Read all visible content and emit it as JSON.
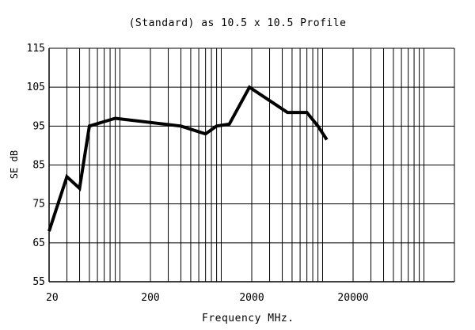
{
  "chart_data": {
    "type": "line",
    "title": "(Standard) as 10.5 x 10.5 Profile",
    "xlabel": "Frequency MHz.",
    "ylabel": "SE dB",
    "x_scale": "log",
    "xlim": [
      20,
      200000
    ],
    "ylim": [
      55,
      115
    ],
    "grid": true,
    "x_tick_labels": [
      "20",
      "200",
      "2000",
      "20000"
    ],
    "y_tick_labels": [
      "115",
      "105",
      "95",
      "85",
      "75",
      "65",
      "55"
    ],
    "series": [
      {
        "x": [
          20,
          30,
          40,
          50,
          90,
          400,
          700,
          900,
          1200,
          1900,
          4500,
          7000,
          9000,
          11000
        ],
        "y": [
          68,
          82,
          79,
          95,
          97,
          95,
          93,
          95,
          95.5,
          105,
          98.5,
          98.5,
          95,
          91.5
        ]
      }
    ]
  }
}
